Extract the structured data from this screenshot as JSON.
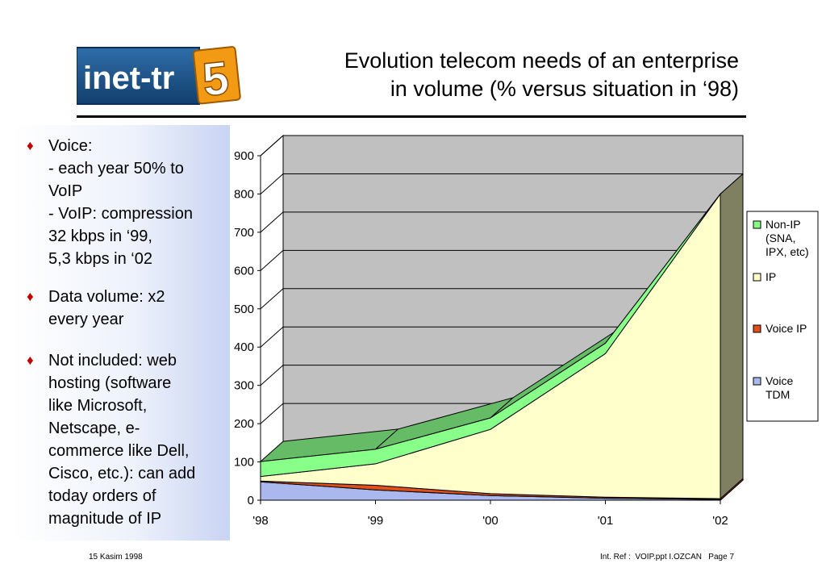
{
  "logo": {
    "text": "inet-tr",
    "number": "5"
  },
  "title": {
    "line1": "Evolution telecom needs of an enterprise",
    "line2": "in volume (% versus situation in ‘98)"
  },
  "bullets": [
    {
      "lines": [
        "Voice:",
        "- each year 50% to",
        "VoIP",
        "- VoIP: compression",
        "32 kbps in ‘99,",
        "5,3 kbps in ‘02"
      ]
    },
    {
      "lines": [
        "Data volume: x2",
        "every year"
      ]
    },
    {
      "lines": [
        "Not included: web",
        "hosting (software",
        "like Microsoft,",
        "Netscape, e-",
        "commerce like Dell,",
        "Cisco, etc.): can add",
        "today orders of",
        "magnitude of IP"
      ]
    }
  ],
  "chart_data": {
    "type": "area",
    "stacked": true,
    "three_d": true,
    "categories": [
      "'98",
      "'99",
      "'00",
      "'01",
      "'02"
    ],
    "ylim": [
      0,
      900
    ],
    "yticks": [
      "0",
      "100",
      "200",
      "300",
      "400",
      "500",
      "600",
      "700",
      "800",
      "900"
    ],
    "grid": true,
    "legend_position": "right",
    "series": [
      {
        "name": "Voice TDM",
        "values": [
          48,
          27,
          12,
          5,
          2
        ],
        "color": "#aab8ee"
      },
      {
        "name": "Voice IP",
        "values": [
          2,
          12,
          5,
          3,
          2
        ],
        "color": "#e0501a"
      },
      {
        "name": "IP",
        "values": [
          12,
          56,
          168,
          375,
          796
        ],
        "color": "#ffffcc"
      },
      {
        "name": "Non-IP (SNA, IPX, etc)",
        "values": [
          39,
          38,
          30,
          27,
          0
        ],
        "color": "#88ff88"
      }
    ],
    "legend": [
      {
        "label_lines": [
          "Non-IP",
          "(SNA,",
          "IPX, etc)"
        ],
        "color": "#88ff88"
      },
      {
        "label_lines": [
          "IP"
        ],
        "color": "#ffffcc"
      },
      {
        "label_lines": [
          "Voice IP"
        ],
        "color": "#e0501a"
      },
      {
        "label_lines": [
          "Voice",
          "TDM"
        ],
        "color": "#aab8ee"
      }
    ],
    "colors": {
      "back_wall": "#c0c0c0",
      "side_wall": "#7f7f62",
      "non_ip_top": "#66bb66"
    }
  },
  "footer": {
    "date": "15 Kasim 1998",
    "ref": "Int. Ref :  VOIP.ppt I.OZCAN   Page 7"
  }
}
